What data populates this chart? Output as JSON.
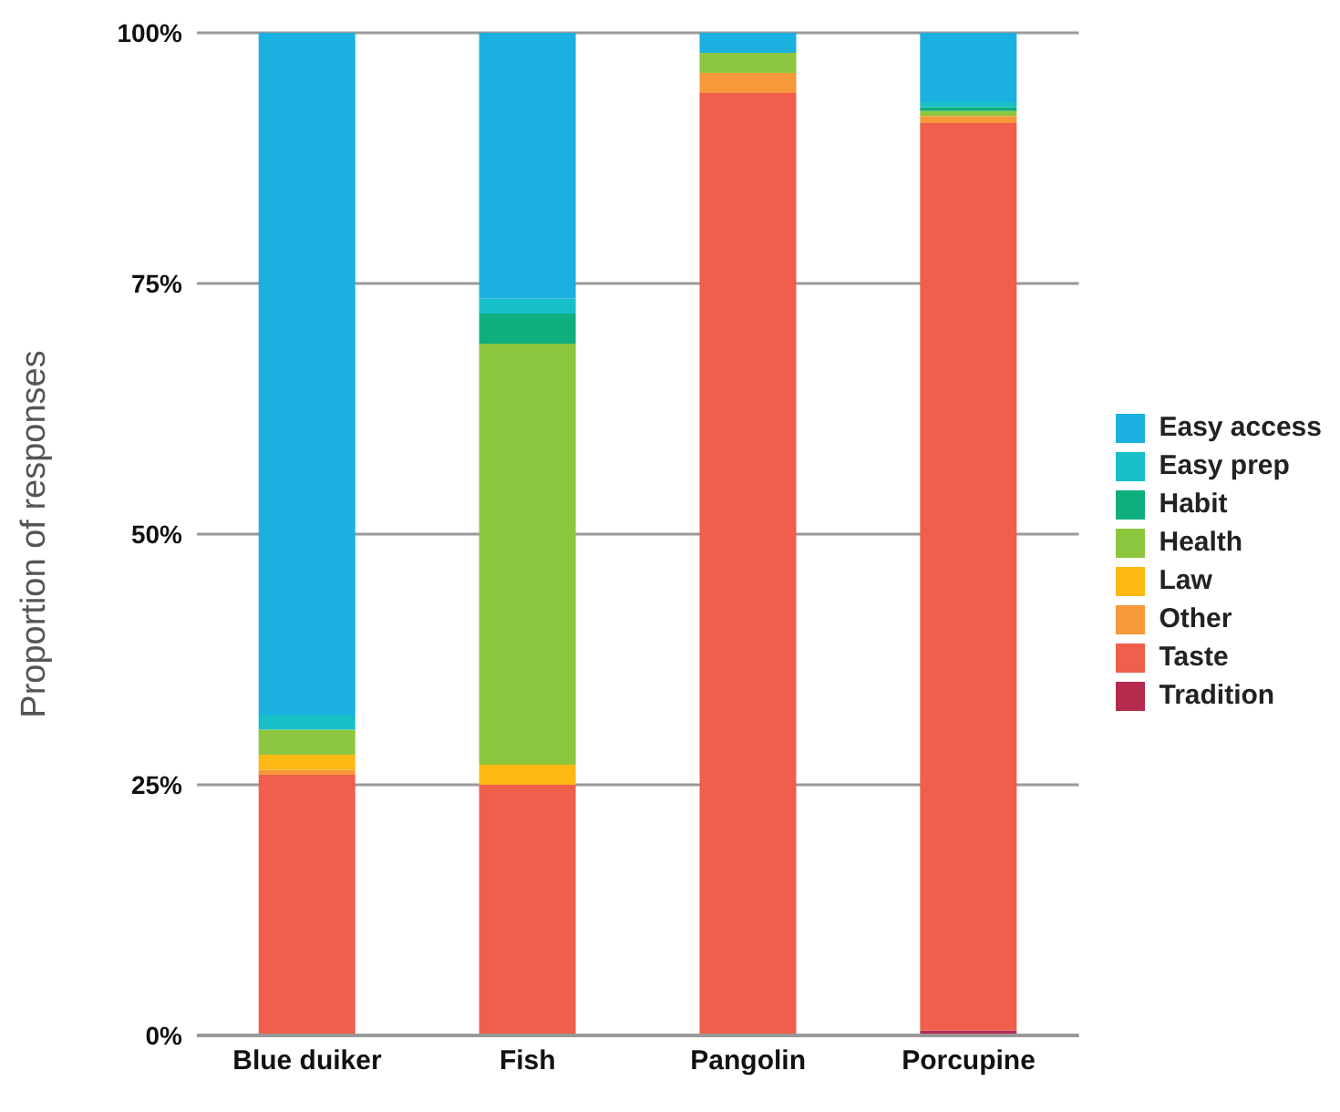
{
  "chart_data": {
    "type": "bar",
    "stacked": true,
    "ylabel": "Proportion of responses",
    "categories": [
      "Blue duiker",
      "Fish",
      "Pangolin",
      "Porcupine"
    ],
    "series": [
      {
        "name": "Tradition",
        "color": "#b52b4e",
        "values": [
          0,
          0,
          0,
          0.5
        ]
      },
      {
        "name": "Taste",
        "color": "#ef5f4b",
        "values": [
          26,
          25,
          94,
          90.5
        ]
      },
      {
        "name": "Other",
        "color": "#f7993b",
        "values": [
          0.5,
          0,
          2,
          0.7
        ]
      },
      {
        "name": "Law",
        "color": "#fdb913",
        "values": [
          1.5,
          2,
          0,
          0
        ]
      },
      {
        "name": "Health",
        "color": "#8dc63f",
        "values": [
          2.5,
          42,
          2,
          0.5
        ]
      },
      {
        "name": "Habit",
        "color": "#0fae7f",
        "values": [
          0,
          3,
          0,
          0.4
        ]
      },
      {
        "name": "Easy prep",
        "color": "#17bfc9",
        "values": [
          1.5,
          1.5,
          0,
          0.5
        ]
      },
      {
        "name": "Easy access",
        "color": "#1ab0e0",
        "values": [
          68,
          26.5,
          2,
          6.9
        ]
      }
    ],
    "ylim": [
      0,
      100
    ],
    "yticks": [
      {
        "value": 0,
        "label": "0%"
      },
      {
        "value": 25,
        "label": "25%"
      },
      {
        "value": 50,
        "label": "50%"
      },
      {
        "value": 75,
        "label": "75%"
      },
      {
        "value": 100,
        "label": "100%"
      }
    ],
    "grid": "y",
    "legend": "right"
  }
}
